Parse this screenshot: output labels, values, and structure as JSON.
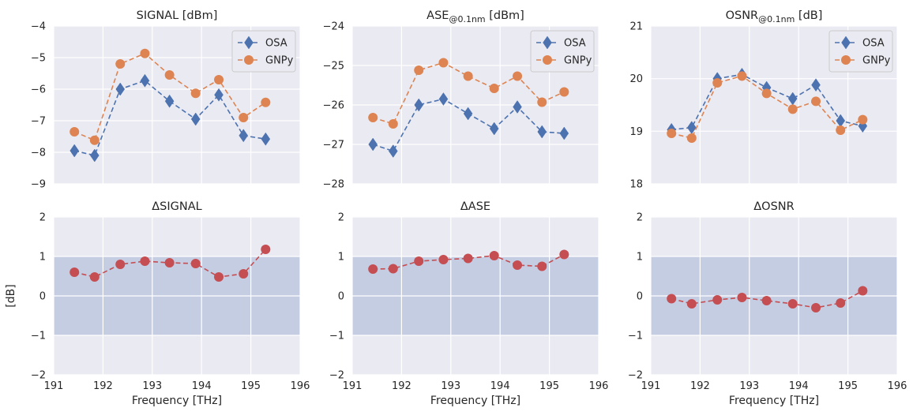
{
  "colors": {
    "osa": "#4c72b0",
    "gnpy": "#dd8452",
    "delta": "#c44e52",
    "band": "#c5cde3",
    "background": "#eaeaf2"
  },
  "x_label": "Frequency [THz]",
  "y_label": "[dB]",
  "chart_data": [
    {
      "type": "line",
      "title": "SIGNAL [dBm]",
      "title_main": "SIGNAL [dBm]",
      "title_sub": "",
      "title_suffix": "",
      "ylim": [
        -9,
        -4
      ],
      "yticks": [
        "−4",
        "−5",
        "−6",
        "−7",
        "−8",
        "−9"
      ],
      "xlim": [
        191,
        196
      ],
      "x": [
        191.42,
        191.83,
        192.35,
        192.85,
        193.35,
        193.88,
        194.35,
        194.85,
        195.3
      ],
      "legend": "upper right",
      "series": [
        {
          "name": "OSA",
          "marker": "diamond",
          "values": [
            -7.95,
            -8.1,
            -6.0,
            -5.73,
            -6.38,
            -6.95,
            -6.18,
            -7.47,
            -7.58
          ]
        },
        {
          "name": "GNPy",
          "marker": "circle",
          "values": [
            -7.35,
            -7.62,
            -5.2,
            -4.87,
            -5.55,
            -6.13,
            -5.7,
            -6.9,
            -6.42
          ]
        }
      ]
    },
    {
      "type": "line",
      "title": "ASE@0.1nm [dBm]",
      "title_main": "ASE",
      "title_sub": "@0.1nm",
      "title_suffix": " [dBm]",
      "ylim": [
        -28,
        -24
      ],
      "yticks": [
        "−24",
        "−25",
        "−26",
        "−27",
        "−28"
      ],
      "xlim": [
        191,
        196
      ],
      "x": [
        191.42,
        191.83,
        192.35,
        192.85,
        193.35,
        193.88,
        194.35,
        194.85,
        195.3
      ],
      "legend": "upper right",
      "series": [
        {
          "name": "OSA",
          "marker": "diamond",
          "values": [
            -27.0,
            -27.17,
            -26.0,
            -25.85,
            -26.22,
            -26.6,
            -26.05,
            -26.68,
            -26.72
          ]
        },
        {
          "name": "GNPy",
          "marker": "circle",
          "values": [
            -26.32,
            -26.48,
            -25.12,
            -24.93,
            -25.27,
            -25.58,
            -25.27,
            -25.93,
            -25.67
          ]
        }
      ]
    },
    {
      "type": "line",
      "title": "OSNR@0.1nm [dB]",
      "title_main": "OSNR",
      "title_sub": "@0.1nm",
      "title_suffix": " [dB]",
      "ylim": [
        18,
        21
      ],
      "yticks": [
        "21",
        "20",
        "19",
        "18"
      ],
      "xlim": [
        191,
        196
      ],
      "x": [
        191.42,
        191.83,
        192.35,
        192.85,
        193.35,
        193.88,
        194.35,
        194.85,
        195.3
      ],
      "legend": "upper right",
      "series": [
        {
          "name": "OSA",
          "marker": "diamond",
          "values": [
            19.03,
            19.07,
            20.0,
            20.08,
            19.83,
            19.62,
            19.88,
            19.2,
            19.1
          ]
        },
        {
          "name": "GNPy",
          "marker": "circle",
          "values": [
            18.96,
            18.87,
            19.92,
            20.05,
            19.72,
            19.42,
            19.57,
            19.02,
            19.22
          ]
        }
      ]
    },
    {
      "type": "line",
      "title": "ΔSIGNAL",
      "title_main": "ΔSIGNAL",
      "title_sub": "",
      "title_suffix": "",
      "ylim": [
        -2,
        2
      ],
      "yticks": [
        "2",
        "1",
        "0",
        "−1",
        "−2"
      ],
      "xlim": [
        191,
        196
      ],
      "xticks": [
        "191",
        "192",
        "193",
        "194",
        "195",
        "196"
      ],
      "band": [
        -1,
        1
      ],
      "x": [
        191.42,
        191.83,
        192.35,
        192.85,
        193.35,
        193.88,
        194.35,
        194.85,
        195.3
      ],
      "series": [
        {
          "marker": "circle",
          "values": [
            0.6,
            0.48,
            0.8,
            0.88,
            0.84,
            0.82,
            0.48,
            0.56,
            1.18
          ]
        }
      ]
    },
    {
      "type": "line",
      "title": "ΔASE",
      "title_main": "ΔASE",
      "title_sub": "",
      "title_suffix": "",
      "ylim": [
        -2,
        2
      ],
      "yticks": [
        "2",
        "1",
        "0",
        "−1",
        "−2"
      ],
      "xlim": [
        191,
        196
      ],
      "xticks": [
        "191",
        "192",
        "193",
        "194",
        "195",
        "196"
      ],
      "band": [
        -1,
        1
      ],
      "x": [
        191.42,
        191.83,
        192.35,
        192.85,
        193.35,
        193.88,
        194.35,
        194.85,
        195.3
      ],
      "series": [
        {
          "marker": "circle",
          "values": [
            0.68,
            0.69,
            0.88,
            0.92,
            0.95,
            1.02,
            0.78,
            0.75,
            1.05
          ]
        }
      ]
    },
    {
      "type": "line",
      "title": "ΔOSNR",
      "title_main": "ΔOSNR",
      "title_sub": "",
      "title_suffix": "",
      "ylim": [
        -2,
        2
      ],
      "yticks": [
        "2",
        "1",
        "0",
        "−1",
        "−2"
      ],
      "xlim": [
        191,
        196
      ],
      "xticks": [
        "191",
        "192",
        "193",
        "194",
        "195",
        "196"
      ],
      "band": [
        -1,
        1
      ],
      "x": [
        191.42,
        191.83,
        192.35,
        192.85,
        193.35,
        193.88,
        194.35,
        194.85,
        195.3
      ],
      "series": [
        {
          "marker": "circle",
          "values": [
            -0.07,
            -0.2,
            -0.1,
            -0.04,
            -0.12,
            -0.2,
            -0.3,
            -0.18,
            0.13
          ]
        }
      ]
    }
  ]
}
